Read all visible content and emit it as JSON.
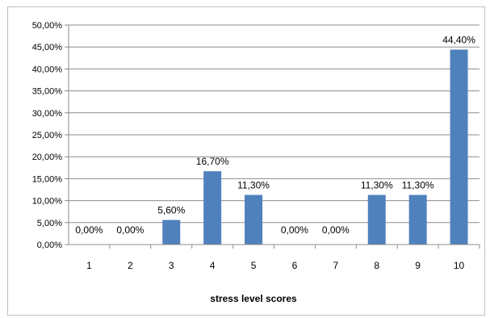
{
  "chart_data": {
    "type": "bar",
    "categories": [
      "1",
      "2",
      "3",
      "4",
      "5",
      "6",
      "7",
      "8",
      "9",
      "10"
    ],
    "values": [
      0.0,
      0.0,
      5.6,
      16.7,
      11.3,
      0.0,
      0.0,
      11.3,
      11.3,
      44.4
    ],
    "data_labels": [
      "0,00%",
      "0,00%",
      "5,60%",
      "16,70%",
      "11,30%",
      "0,00%",
      "0,00%",
      "11,30%",
      "11,30%",
      "44,40%"
    ],
    "title": "",
    "xlabel": "stress level scores",
    "ylabel": "",
    "ylim": [
      0,
      50
    ],
    "yticks": [
      0,
      5,
      10,
      15,
      20,
      25,
      30,
      35,
      40,
      45,
      50
    ],
    "ytick_labels": [
      "0,00%",
      "5,00%",
      "10,00%",
      "15,00%",
      "20,00%",
      "25,00%",
      "30,00%",
      "35,00%",
      "40,00%",
      "45,00%",
      "50,00%"
    ],
    "grid": true,
    "legend": "none",
    "bar_color": "#4f81bd",
    "grid_color": "#8c8c8c"
  }
}
